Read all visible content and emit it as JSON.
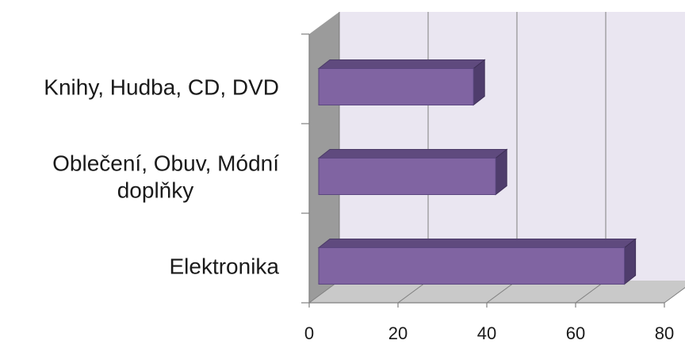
{
  "chart_data": {
    "type": "bar",
    "orientation": "horizontal",
    "style": "3d",
    "categories": [
      "Knihy, Hudba, CD, DVD",
      "Oblečení, Obuv, Módní doplňky",
      "Elektronika"
    ],
    "category_lines": [
      [
        "Knihy, Hudba, CD, DVD"
      ],
      [
        "Oblečení, Obuv, Módní",
        "doplňky"
      ],
      [
        "Elektronika"
      ]
    ],
    "values": [
      37,
      42,
      71
    ],
    "xlim": [
      0,
      80
    ],
    "xticks": [
      "0",
      "20",
      "40",
      "60",
      "80"
    ],
    "title": "",
    "xlabel": "",
    "ylabel": "",
    "grid": true,
    "legend": "none",
    "colors": {
      "bar_front": "#8064A2",
      "bar_top": "#5F4A7E",
      "bar_side": "#4F3D6C",
      "back_wall": "#EAE6F1",
      "side_wall": "#9B9B9B",
      "floor": "#C9C9C9",
      "grid": "#808080"
    }
  }
}
